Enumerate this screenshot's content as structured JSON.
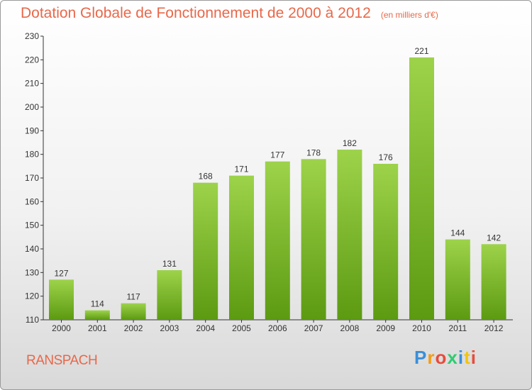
{
  "chart_data": {
    "type": "bar",
    "title": "Dotation Globale de Fonctionnement de 2000 à 2012",
    "unit": "(en milliers d'€)",
    "categories": [
      "2000",
      "2001",
      "2002",
      "2003",
      "2004",
      "2005",
      "2006",
      "2007",
      "2008",
      "2009",
      "2010",
      "2011",
      "2012"
    ],
    "values": [
      127,
      114,
      117,
      131,
      168,
      171,
      177,
      178,
      182,
      176,
      221,
      144,
      142
    ],
    "ylim": [
      110,
      230
    ],
    "yticks": [
      110,
      120,
      130,
      140,
      150,
      160,
      170,
      180,
      190,
      200,
      210,
      220,
      230
    ],
    "grid": false,
    "colors": {
      "bar_light": "#9dd34a",
      "bar_dark": "#5c9a12",
      "title": "#e8684a"
    }
  },
  "place_name": "RANSPACH",
  "logo_text": "Proxiti",
  "logo_colors": [
    "#3a8fd8",
    "#f39c12",
    "#e74c3c",
    "#2ecc71",
    "#3a8fd8",
    "#f1c40f",
    "#e74c3c"
  ]
}
